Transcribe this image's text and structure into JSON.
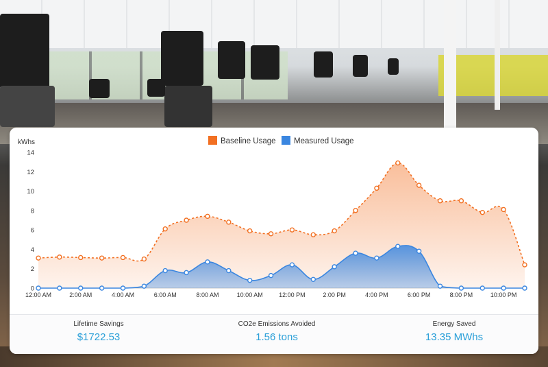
{
  "chart_data": {
    "type": "area",
    "ylabel": "kWhs",
    "ylim": [
      0,
      14
    ],
    "yticks": [
      "0",
      "2",
      "4",
      "6",
      "8",
      "10",
      "12",
      "14"
    ],
    "x_tick_labels": [
      "12:00 AM",
      "2:00 AM",
      "4:00 AM",
      "6:00 AM",
      "8:00 AM",
      "10:00 AM",
      "12:00 PM",
      "2:00 PM",
      "4:00 PM",
      "6:00 PM",
      "8:00 PM",
      "10:00 PM"
    ],
    "legend_position": "top-center",
    "series": [
      {
        "name": "Baseline Usage",
        "color": "#f27022",
        "values": [
          3.1,
          3.2,
          3.15,
          3.1,
          3.15,
          3.0,
          6.1,
          7.0,
          7.4,
          6.8,
          5.9,
          5.6,
          6.0,
          5.5,
          5.9,
          8.0,
          10.3,
          12.9,
          10.6,
          9.0,
          9.0,
          7.8,
          8.1,
          2.4
        ]
      },
      {
        "name": "Measured Usage",
        "color": "#3a86e0",
        "values": [
          0,
          0,
          0,
          0,
          0,
          0.2,
          1.8,
          1.6,
          2.7,
          1.8,
          0.8,
          1.3,
          2.4,
          0.9,
          2.2,
          3.6,
          3.1,
          4.3,
          3.8,
          0.2,
          0,
          0,
          0,
          0
        ]
      }
    ]
  },
  "stats": [
    {
      "label": "Lifetime Savings",
      "value": "$1722.53"
    },
    {
      "label": "CO2e Emissions Avoided",
      "value": "1.56 tons"
    },
    {
      "label": "Energy Saved",
      "value": "13.35 MWhs"
    }
  ]
}
